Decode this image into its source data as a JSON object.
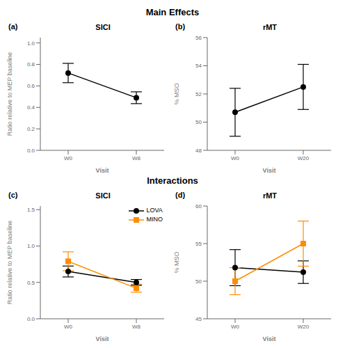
{
  "chart_data": [
    {
      "type": "line",
      "title": "Main Effects",
      "panel_label": "(a)",
      "subtitle": "SICI",
      "xlabel": "Visit",
      "ylabel": "Ratio relative to MEP baseline",
      "categories": [
        "W0",
        "W8"
      ],
      "series": [
        {
          "color": "#000000",
          "marker": "circle",
          "values": [
            0.72,
            0.49
          ],
          "errors": [
            0.09,
            0.055
          ]
        }
      ],
      "ylim": [
        0.0,
        1.05
      ],
      "yticks": [
        {
          "value": 0,
          "label": "0.0"
        },
        0.2,
        0.4,
        0.6,
        0.8,
        {
          "value": 1,
          "label": "1.0"
        }
      ],
      "grid": false
    },
    {
      "type": "line",
      "panel_label": "(b)",
      "subtitle": "rMT",
      "xlabel": "Visit",
      "ylabel": "% MSO",
      "categories": [
        "W0",
        "W20"
      ],
      "series": [
        {
          "color": "#000000",
          "marker": "circle",
          "values": [
            50.7,
            52.5
          ],
          "errors": [
            1.7,
            1.6
          ]
        }
      ],
      "ylim": [
        48,
        56
      ],
      "yticks": [
        48,
        50,
        52,
        54,
        56
      ],
      "grid": false
    },
    {
      "type": "line",
      "title": "Interactions",
      "panel_label": "(c)",
      "subtitle": "SICI",
      "xlabel": "Visit",
      "ylabel": "Ratio relative to MEP baseline",
      "categories": [
        "W0",
        "W8"
      ],
      "series": [
        {
          "name": "LOVA",
          "color": "#000000",
          "marker": "circle",
          "values": [
            0.65,
            0.5
          ],
          "errors": [
            0.075,
            0.04
          ]
        },
        {
          "name": "MINO",
          "color": "#FF8C00",
          "marker": "square",
          "values": [
            0.79,
            0.42
          ],
          "errors": [
            0.13,
            0.055
          ]
        }
      ],
      "ylim": [
        0.0,
        1.55
      ],
      "yticks": [
        {
          "value": 0,
          "label": "0.0"
        },
        0.5,
        {
          "value": 1,
          "label": "1.0"
        },
        1.5
      ],
      "legend": "upper right",
      "grid": false
    },
    {
      "type": "line",
      "panel_label": "(d)",
      "subtitle": "rMT",
      "xlabel": "Visit",
      "ylabel": "% MSO",
      "categories": [
        "W0",
        "W20"
      ],
      "series": [
        {
          "name": "LOVA",
          "color": "#000000",
          "marker": "circle",
          "values": [
            51.8,
            51.2
          ],
          "errors": [
            2.4,
            1.5
          ]
        },
        {
          "name": "MINO",
          "color": "#FF8C00",
          "marker": "square",
          "values": [
            50.0,
            55.0
          ],
          "errors": [
            1.8,
            3.0
          ]
        }
      ],
      "ylim": [
        45,
        60
      ],
      "yticks": [
        45,
        50,
        55,
        60
      ],
      "grid": false
    }
  ]
}
